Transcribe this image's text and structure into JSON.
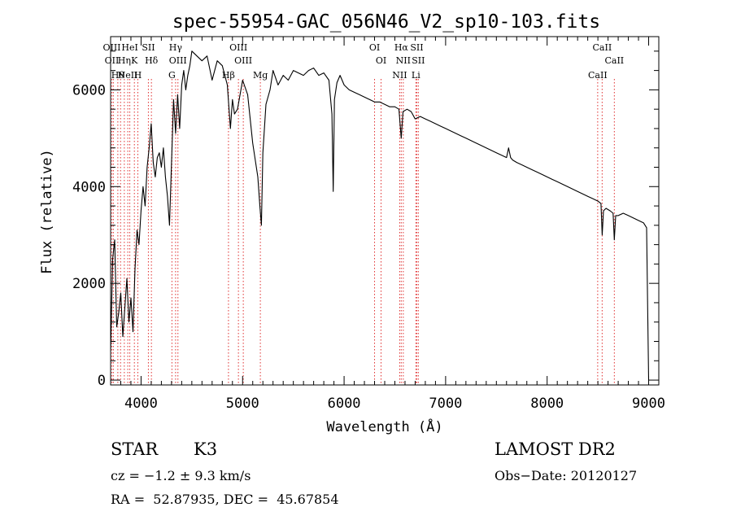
{
  "chart_data": {
    "type": "line",
    "title": "spec-55954-GAC_056N46_V2_sp10-103.fits",
    "xlabel": "Wavelength (Å)",
    "ylabel": "Flux (relative)",
    "xlim": [
      3700,
      9100
    ],
    "ylim": [
      -100,
      7100
    ],
    "xticks": [
      4000,
      5000,
      6000,
      7000,
      8000,
      9000
    ],
    "yticks": [
      0,
      2000,
      4000,
      6000
    ],
    "grid": false,
    "series": [
      {
        "x": [
          3700,
          3720,
          3740,
          3760,
          3780,
          3800,
          3820,
          3840,
          3860,
          3880,
          3900,
          3920,
          3940,
          3960,
          3980,
          4000,
          4020,
          4040,
          4060,
          4080,
          4100,
          4120,
          4140,
          4160,
          4180,
          4200,
          4220,
          4240,
          4260,
          4280,
          4300,
          4320,
          4340,
          4360,
          4380,
          4400,
          4420,
          4440,
          4460,
          4480,
          4500,
          4550,
          4600,
          4650,
          4700,
          4750,
          4800,
          4850,
          4880,
          4900,
          4920,
          4950,
          5000,
          5050,
          5100,
          5150,
          5170,
          5185,
          5200,
          5230,
          5270,
          5300,
          5350,
          5400,
          5450,
          5500,
          5550,
          5600,
          5650,
          5700,
          5750,
          5800,
          5850,
          5880,
          5893,
          5905,
          5930,
          5960,
          6000,
          6050,
          6100,
          6150,
          6200,
          6250,
          6300,
          6350,
          6400,
          6450,
          6500,
          6540,
          6563,
          6580,
          6620,
          6660,
          6700,
          6750,
          6800,
          6850,
          6900,
          6950,
          7000,
          7050,
          7100,
          7150,
          7200,
          7250,
          7300,
          7350,
          7400,
          7450,
          7500,
          7550,
          7600,
          7620,
          7640,
          7660,
          7700,
          7750,
          7800,
          7850,
          7900,
          7950,
          8000,
          8050,
          8100,
          8150,
          8200,
          8250,
          8300,
          8350,
          8400,
          8450,
          8500,
          8530,
          8542,
          8555,
          8580,
          8620,
          8650,
          8662,
          8675,
          8700,
          8750,
          8800,
          8850,
          8900,
          8950,
          8980,
          8990,
          9000
        ],
        "y": [
          600,
          2500,
          2900,
          1100,
          1400,
          1800,
          900,
          1500,
          2100,
          1200,
          1700,
          1000,
          2300,
          3100,
          2800,
          3500,
          4000,
          3600,
          4400,
          4800,
          5300,
          4500,
          4200,
          4600,
          4700,
          4400,
          4800,
          4200,
          3800,
          3200,
          4500,
          5800,
          5100,
          5900,
          5200,
          6100,
          6400,
          6000,
          6300,
          6500,
          6800,
          6700,
          6600,
          6700,
          6200,
          6600,
          6500,
          6100,
          5200,
          5800,
          5500,
          5600,
          6200,
          5900,
          4900,
          4200,
          3600,
          3200,
          4700,
          5700,
          6000,
          6400,
          6100,
          6300,
          6200,
          6400,
          6350,
          6300,
          6400,
          6450,
          6300,
          6350,
          6200,
          5500,
          3900,
          5800,
          6150,
          6300,
          6100,
          6000,
          5950,
          5900,
          5850,
          5800,
          5750,
          5750,
          5700,
          5650,
          5650,
          5600,
          5000,
          5550,
          5600,
          5550,
          5400,
          5450,
          5400,
          5350,
          5300,
          5250,
          5200,
          5150,
          5100,
          5050,
          5000,
          4950,
          4900,
          4850,
          4800,
          4750,
          4700,
          4650,
          4600,
          4800,
          4600,
          4550,
          4500,
          4450,
          4400,
          4350,
          4300,
          4250,
          4200,
          4150,
          4100,
          4050,
          4000,
          3950,
          3900,
          3850,
          3800,
          3750,
          3700,
          3650,
          3000,
          3500,
          3550,
          3500,
          3450,
          2900,
          3400,
          3400,
          3450,
          3400,
          3350,
          3300,
          3250,
          3150,
          1500,
          0
        ]
      }
    ],
    "lines": [
      {
        "x": 3712,
        "labels": [
          "OIII",
          "OII"
        ]
      },
      {
        "x": 3727,
        "labels": []
      },
      {
        "x": 3771,
        "labels": [
          "Hθ"
        ]
      },
      {
        "x": 3798,
        "labels": []
      },
      {
        "x": 3835,
        "labels": [
          "Hη"
        ]
      },
      {
        "x": 3869,
        "labels": [
          "NeII"
        ]
      },
      {
        "x": 3889,
        "labels": [
          "HeI"
        ]
      },
      {
        "x": 3934,
        "labels": [
          "K"
        ]
      },
      {
        "x": 3968,
        "labels": [
          "H"
        ]
      },
      {
        "x": 4072,
        "labels": [
          "SII"
        ]
      },
      {
        "x": 4102,
        "labels": [
          "Hδ"
        ]
      },
      {
        "x": 4304,
        "labels": [
          "G"
        ]
      },
      {
        "x": 4340,
        "labels": [
          "Hγ"
        ]
      },
      {
        "x": 4363,
        "labels": [
          "OIII"
        ]
      },
      {
        "x": 4861,
        "labels": [
          "Hβ"
        ]
      },
      {
        "x": 4959,
        "labels": [
          "OIII"
        ]
      },
      {
        "x": 5007,
        "labels": [
          "OIII"
        ]
      },
      {
        "x": 5175,
        "labels": [
          "Mg"
        ]
      },
      {
        "x": 6300,
        "labels": [
          "OI"
        ]
      },
      {
        "x": 6364,
        "labels": [
          "OI"
        ]
      },
      {
        "x": 6548,
        "labels": [
          "NII"
        ]
      },
      {
        "x": 6563,
        "labels": [
          "Hα"
        ]
      },
      {
        "x": 6583,
        "labels": [
          "NII"
        ]
      },
      {
        "x": 6707,
        "labels": [
          "Li"
        ]
      },
      {
        "x": 6716,
        "labels": [
          "SII"
        ]
      },
      {
        "x": 6731,
        "labels": [
          "SII"
        ]
      },
      {
        "x": 8498,
        "labels": [
          "CaII"
        ]
      },
      {
        "x": 8542,
        "labels": [
          "CaII"
        ]
      },
      {
        "x": 8662,
        "labels": [
          "CaII"
        ]
      }
    ]
  },
  "info": {
    "class": "STAR",
    "subclass": "K3",
    "survey": "LAMOST DR2",
    "cz": "cz = −1.2 ± 9.3 km/s",
    "obsdate": "Obs−Date: 20120127",
    "radec": "RA =  52.87935, DEC =  45.67854"
  },
  "colors": {
    "spectrum": "#000000",
    "line_markers": "#e03030"
  }
}
